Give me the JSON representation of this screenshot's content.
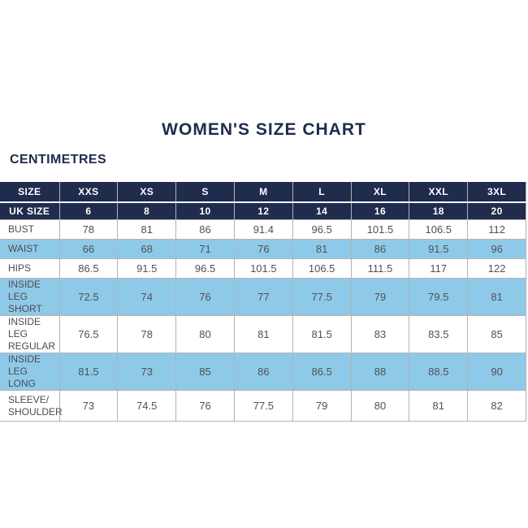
{
  "page": {
    "title": "WOMEN'S SIZE CHART",
    "unit_label": "CENTIMETRES"
  },
  "colors": {
    "navy": "#202c4e",
    "blue": "#8ecae8",
    "border": "#b3b3b3",
    "text": "#4f5058"
  },
  "table": {
    "header_rows": [
      {
        "label": "SIZE",
        "values": [
          "XXS",
          "XS",
          "S",
          "M",
          "L",
          "XL",
          "XXL",
          "3XL"
        ]
      },
      {
        "label": "UK SIZE",
        "values": [
          "6",
          "8",
          "10",
          "12",
          "14",
          "16",
          "18",
          "20"
        ]
      }
    ],
    "rows": [
      {
        "label": "BUST",
        "values": [
          "78",
          "81",
          "86",
          "91.4",
          "96.5",
          "101.5",
          "106.5",
          "112"
        ]
      },
      {
        "label": "WAIST",
        "values": [
          "66",
          "68",
          "71",
          "76",
          "81",
          "86",
          "91.5",
          "96"
        ]
      },
      {
        "label": "HIPS",
        "values": [
          "86.5",
          "91.5",
          "96.5",
          "101.5",
          "106.5",
          "111.5",
          "117",
          "122"
        ]
      },
      {
        "label": "INSIDE LEG\nSHORT",
        "values": [
          "72.5",
          "74",
          "76",
          "77",
          "77.5",
          "79",
          "79.5",
          "81"
        ]
      },
      {
        "label": "INSIDE LEG\nREGULAR",
        "values": [
          "76.5",
          "78",
          "80",
          "81",
          "81.5",
          "83",
          "83.5",
          "85"
        ]
      },
      {
        "label": "INSIDE LEG\nLONG",
        "values": [
          "81.5",
          "73",
          "85",
          "86",
          "86.5",
          "88",
          "88.5",
          "90"
        ]
      },
      {
        "label": "SLEEVE/\nSHOULDER",
        "values": [
          "73",
          "74.5",
          "76",
          "77.5",
          "79",
          "80",
          "81",
          "82"
        ]
      }
    ]
  }
}
